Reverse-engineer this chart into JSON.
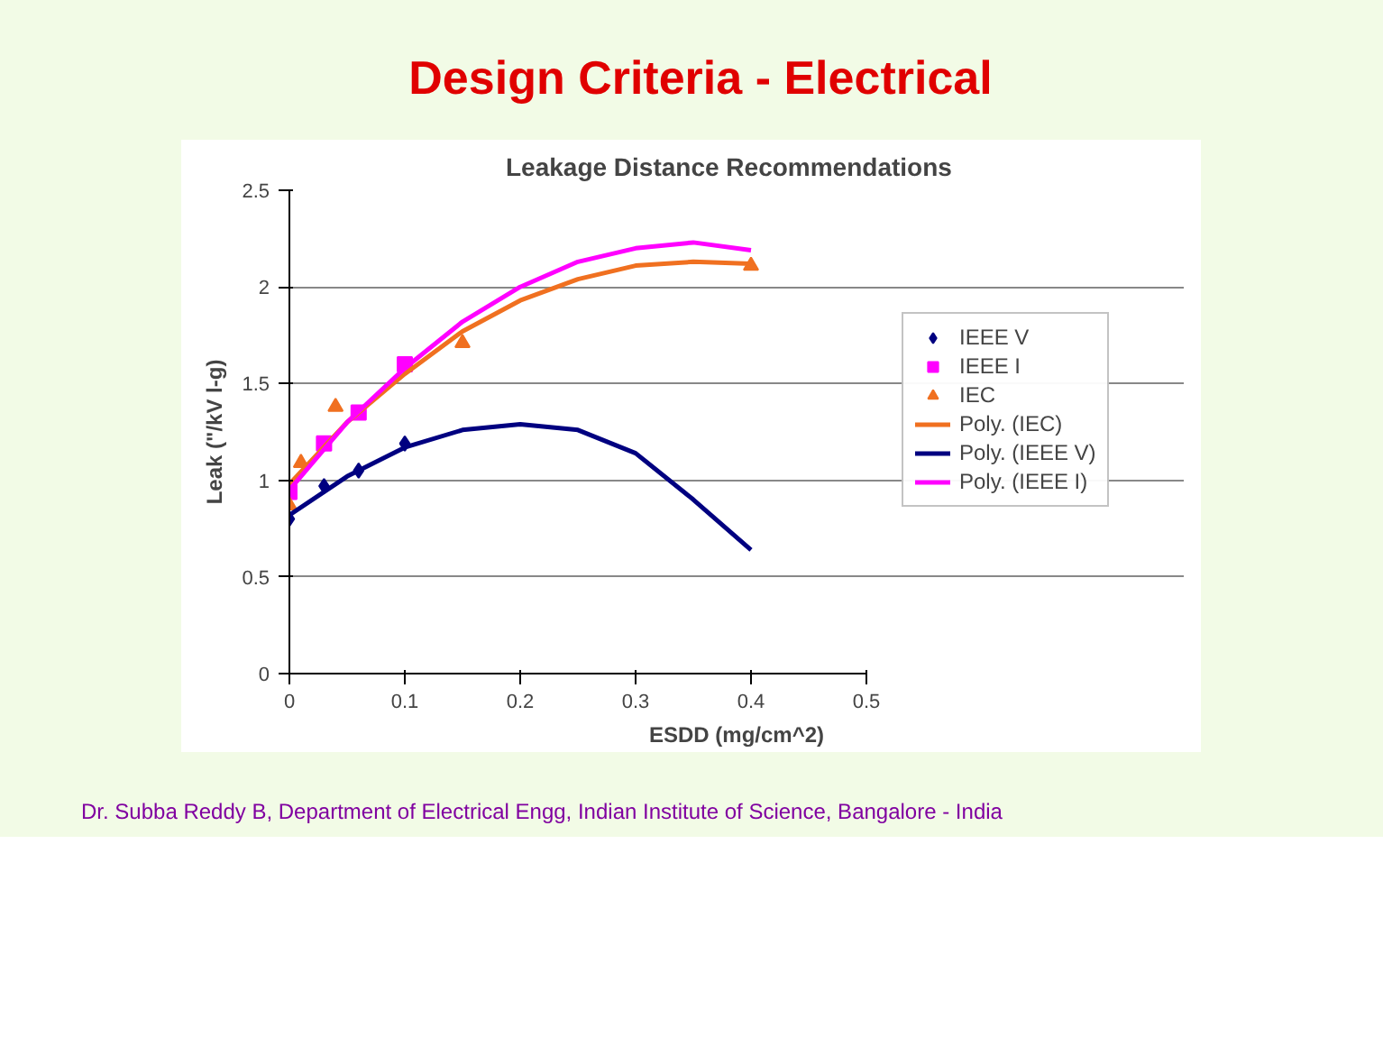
{
  "chart_data": {
    "type": "scatter",
    "title": "Leakage Distance Recommendations",
    "xlabel": "ESDD (mg/cm^2)",
    "ylabel": "Leak (\"/kV l-g)",
    "annotations": [
      "Design Criteria - Electrical",
      "Dr. Subba Reddy B, Department of Electrical Engg, Indian Institute of Science, Bangalore - India"
    ],
    "xlim": [
      0,
      0.5
    ],
    "xticks": [
      0,
      0.1,
      0.2,
      0.3,
      0.4,
      0.5
    ],
    "ylim": [
      0,
      2.5
    ],
    "yticks": [
      0,
      0.5,
      1,
      1.5,
      2,
      2.5
    ],
    "grid": "y",
    "legend": "right",
    "series": [
      {
        "name": "IEEE V",
        "marker": "diamond",
        "color": "#000080",
        "x": [
          0,
          0.03,
          0.06,
          0.1
        ],
        "values": [
          0.8,
          0.97,
          1.05,
          1.19
        ]
      },
      {
        "name": "IEEE I",
        "marker": "square",
        "color": "#ff00ff",
        "x": [
          0,
          0.03,
          0.06,
          0.1
        ],
        "values": [
          0.94,
          1.19,
          1.35,
          1.6
        ]
      },
      {
        "name": "IEC",
        "marker": "triangle",
        "color": "#f07020",
        "x": [
          0,
          0.01,
          0.04,
          0.15,
          0.4
        ],
        "values": [
          0.87,
          1.09,
          1.38,
          1.71,
          2.11
        ]
      },
      {
        "name": "Poly. (IEC)",
        "type": "line",
        "color": "#f07020",
        "x": [
          0,
          0.05,
          0.1,
          0.15,
          0.2,
          0.25,
          0.3,
          0.35,
          0.4
        ],
        "values": [
          0.98,
          1.3,
          1.55,
          1.77,
          1.93,
          2.04,
          2.11,
          2.13,
          2.12
        ]
      },
      {
        "name": "Poly. (IEEE V)",
        "type": "line",
        "color": "#000080",
        "x": [
          0,
          0.05,
          0.1,
          0.15,
          0.2,
          0.25,
          0.3,
          0.35,
          0.4
        ],
        "values": [
          0.82,
          1.02,
          1.17,
          1.26,
          1.29,
          1.26,
          1.14,
          0.9,
          0.64
        ]
      },
      {
        "name": "Poly. (IEEE I)",
        "type": "line",
        "color": "#ff00ff",
        "x": [
          0,
          0.05,
          0.1,
          0.15,
          0.2,
          0.25,
          0.3,
          0.35,
          0.4
        ],
        "values": [
          0.95,
          1.3,
          1.58,
          1.82,
          2.0,
          2.13,
          2.2,
          2.23,
          2.19
        ]
      }
    ]
  }
}
